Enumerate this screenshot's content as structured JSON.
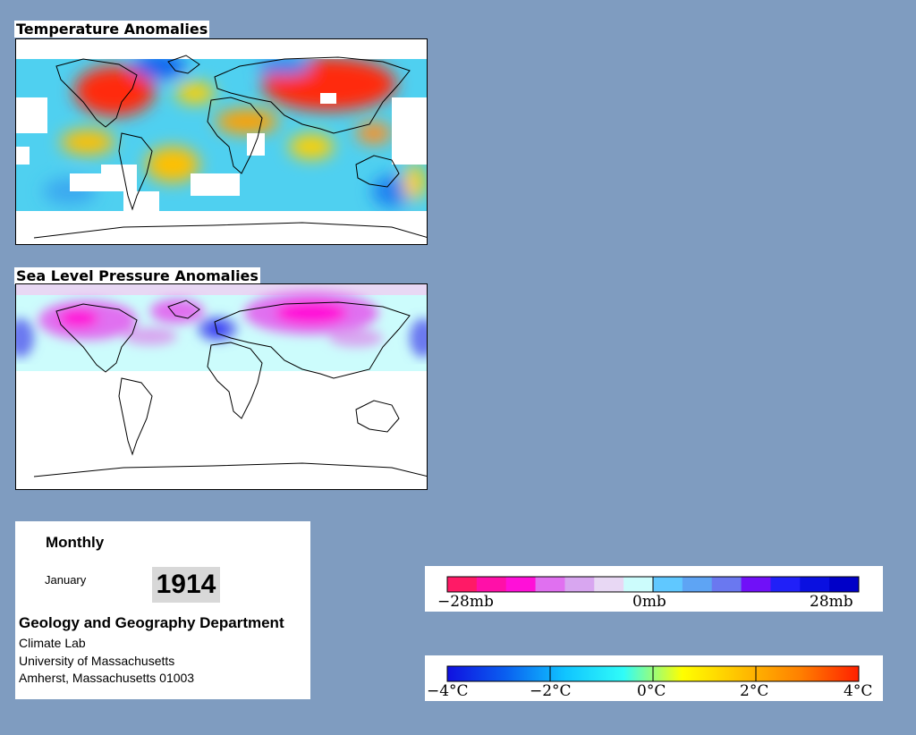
{
  "panels": {
    "temperature": {
      "title": "Temperature Anomalies"
    },
    "pressure": {
      "title": "Sea Level Pressure Anomalies"
    }
  },
  "info": {
    "period": "Monthly",
    "month": "January",
    "year": "1914",
    "department": "Geology and Geography Department",
    "lab": "Climate Lab",
    "university": "University of Massachusetts",
    "address": "Amherst, Massachusetts 01003"
  },
  "pressure_legend": {
    "labels": [
      "−28mb",
      "0mb",
      "28mb"
    ],
    "colors": [
      "#ff1a66",
      "#ff10a8",
      "#ff10d8",
      "#e070f0",
      "#d8a6f0",
      "#e8d8f4",
      "#ccfcfc",
      "#60c8ff",
      "#5ea4f4",
      "#6a78f0",
      "#7010f8",
      "#2020f8",
      "#0a10e0",
      "#0000c8"
    ]
  },
  "temperature_legend": {
    "labels": [
      "−4°C",
      "−2°C",
      "0°C",
      "2°C",
      "4°C"
    ],
    "gradient_stops": [
      "#1010e0",
      "#0a60f0",
      "#10c4ff",
      "#30fcf8",
      "#ffff00",
      "#ffc000",
      "#ff8000",
      "#ff2000"
    ]
  }
}
